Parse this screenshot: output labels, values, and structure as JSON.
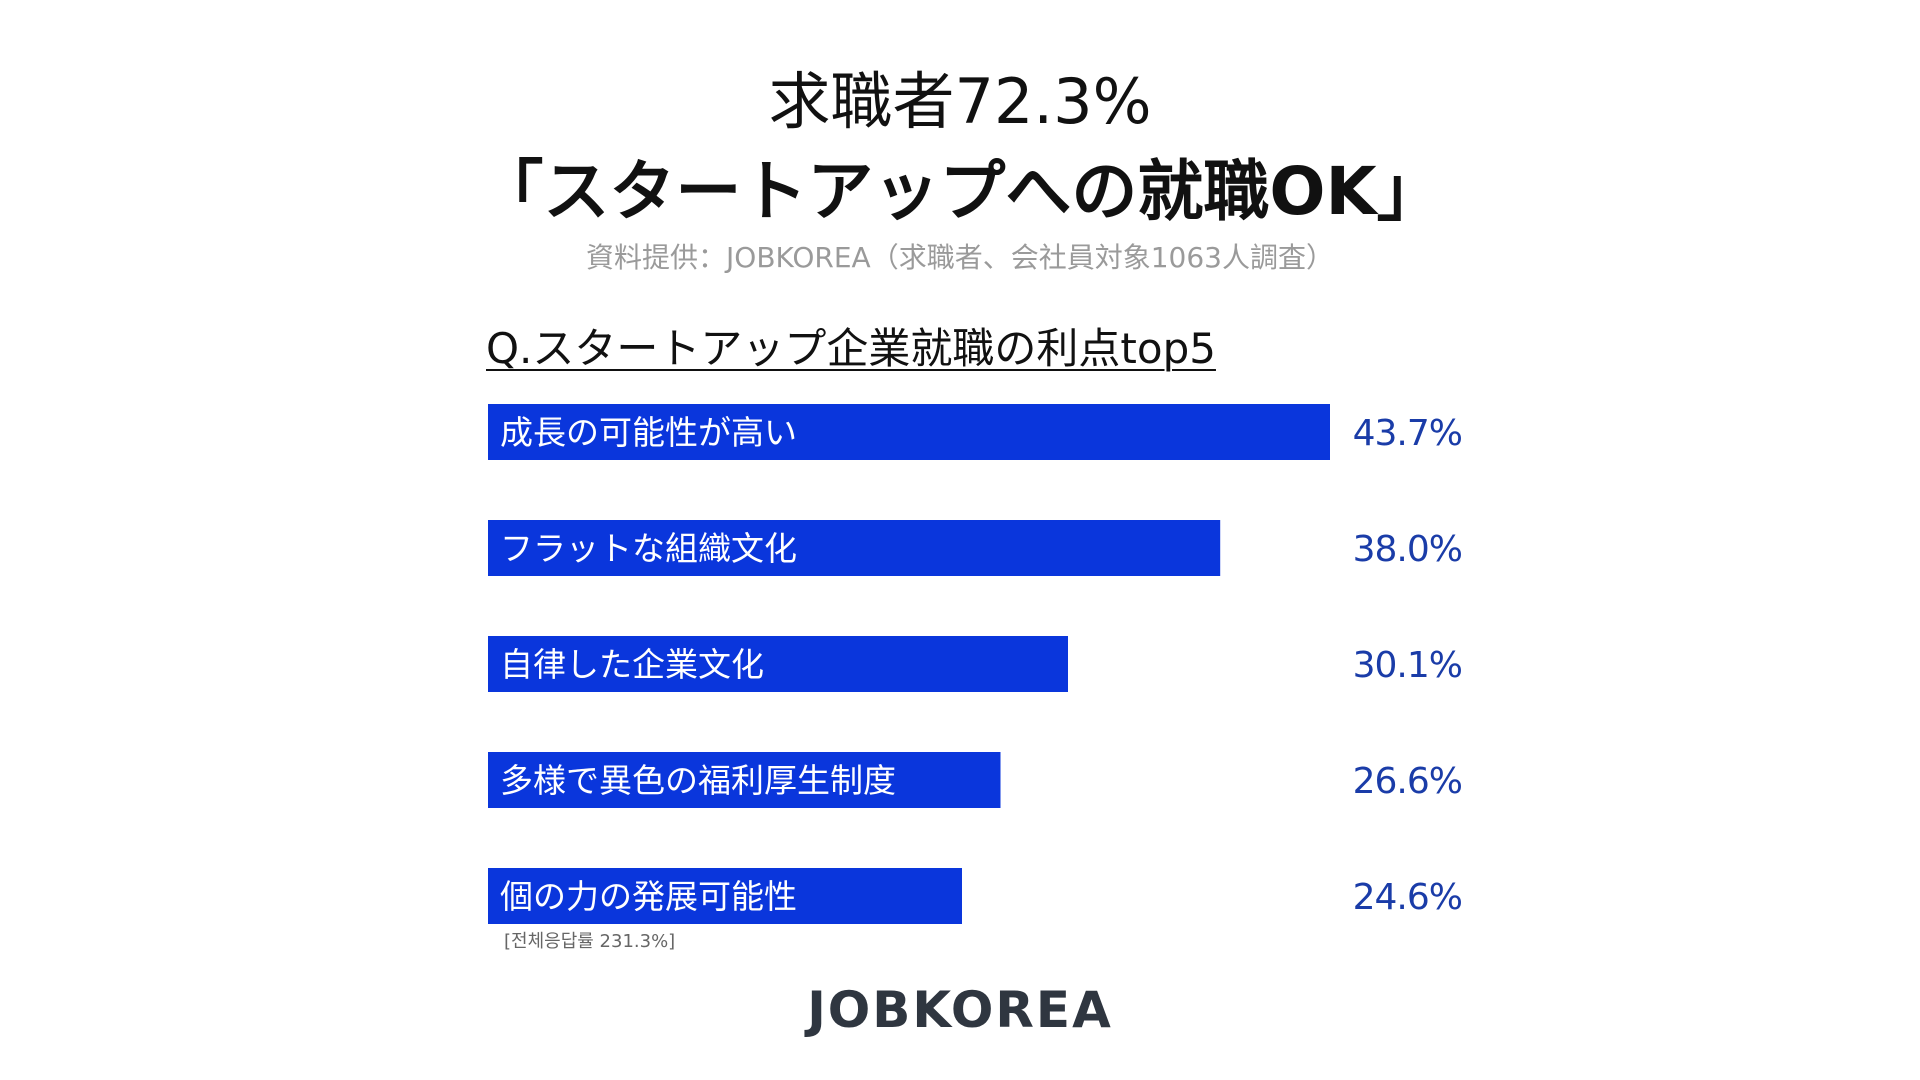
{
  "title": {
    "line1": "求職者72.3%",
    "line2": "「スタートアップへの就職OK」"
  },
  "source": "資料提供：JOBKOREA（求職者、会社員対象1063人調査）",
  "question": "Q.スタートアップ企業就職の利点top5",
  "note": "[전체응답률 231.3%]",
  "logo": "JOBKOREA",
  "colors": {
    "bar": "#0a36dc",
    "value_text": "#1a3ca8",
    "label_text": "#ffffff"
  },
  "chart_data": {
    "type": "bar",
    "orientation": "horizontal",
    "categories": [
      "成長の可能性が高い",
      "フラットな組織文化",
      "自律した企業文化",
      "多様で異色の福利厚生制度",
      "個の力の発展可能性"
    ],
    "values": [
      43.7,
      38.0,
      30.1,
      26.6,
      24.6
    ],
    "value_labels": [
      "43.7%",
      "38.0%",
      "30.1%",
      "26.6%",
      "24.6%"
    ],
    "unit": "%",
    "xlim": [
      0,
      43.7
    ],
    "grid": false,
    "legend": "none"
  }
}
